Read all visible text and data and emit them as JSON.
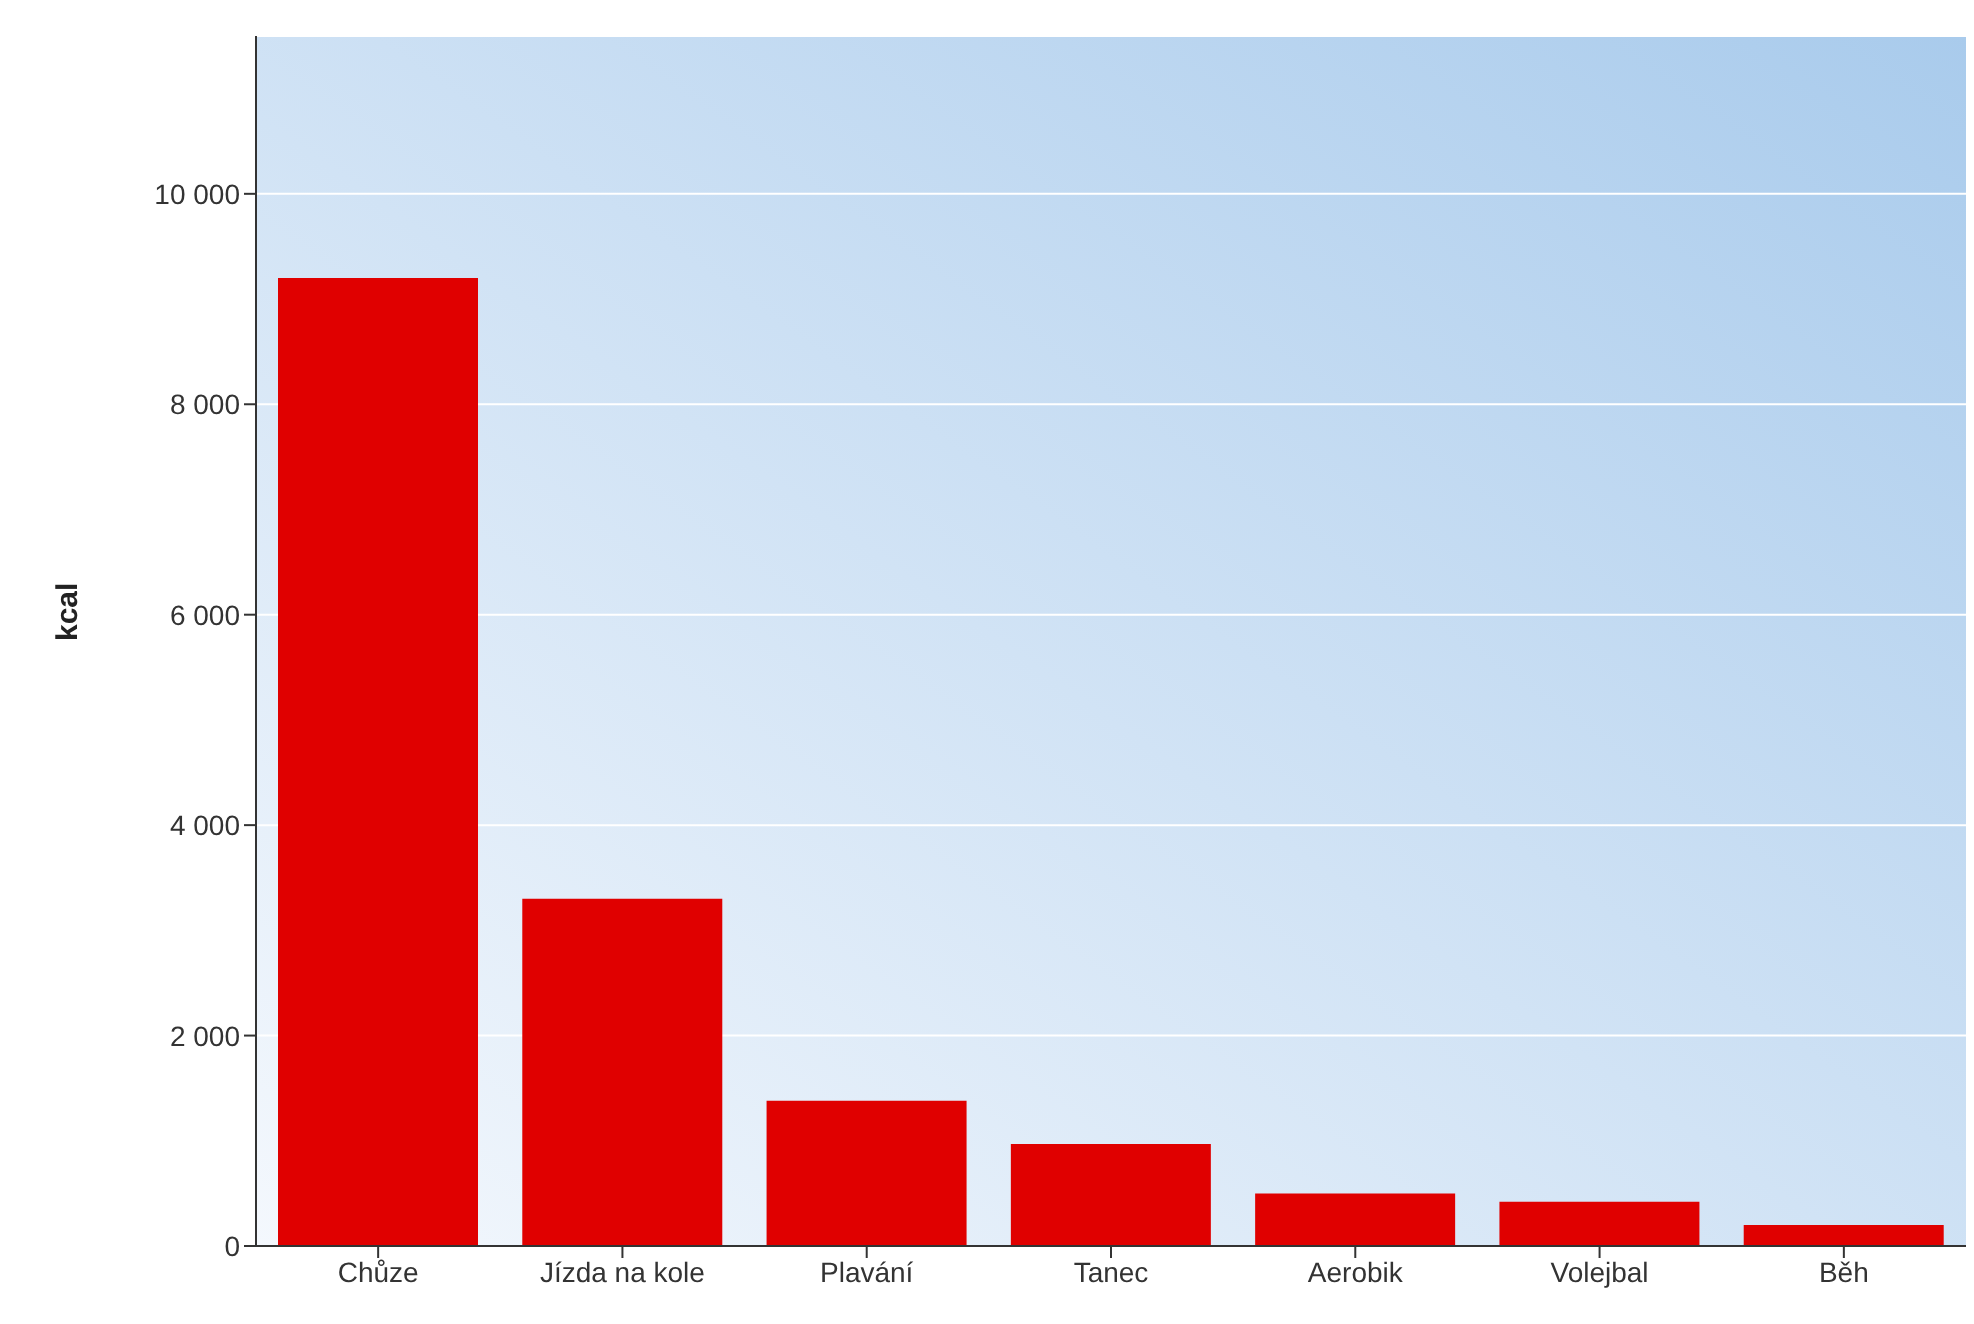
{
  "chart_data": {
    "type": "bar",
    "ylabel": "kcal",
    "categories": [
      "Chůze",
      "Jízda na kole",
      "Plavání",
      "Tanec",
      "Aerobik",
      "Volejbal",
      "Běh"
    ],
    "values": [
      9200,
      3300,
      1380,
      970,
      500,
      420,
      200
    ],
    "color": "#e00000",
    "ylim": [
      0,
      11500
    ],
    "yticks": [
      {
        "value": 0,
        "label": "0"
      },
      {
        "value": 2000,
        "label": "2 000"
      },
      {
        "value": 4000,
        "label": "4 000"
      },
      {
        "value": 6000,
        "label": "6 000"
      },
      {
        "value": 8000,
        "label": "8 000"
      },
      {
        "value": 10000,
        "label": "10 000"
      }
    ],
    "grid": "y"
  }
}
